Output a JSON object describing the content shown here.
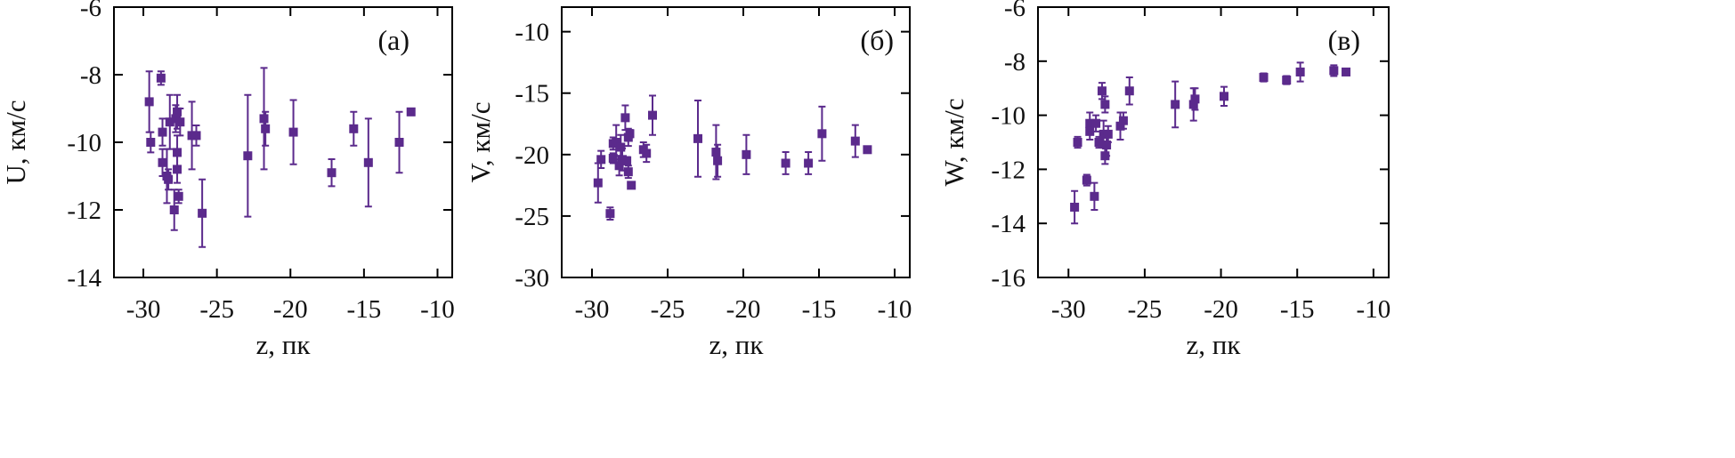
{
  "chart_data": [
    {
      "type": "scatter",
      "panel_label": "(а)",
      "xlabel": "z, пк",
      "ylabel": "U, км/с",
      "xlim": [
        -32,
        -9
      ],
      "ylim": [
        -14,
        -6
      ],
      "xticks": [
        -30,
        -25,
        -20,
        -15,
        -10
      ],
      "yticks": [
        -14,
        -12,
        -10,
        -8,
        -6
      ],
      "xtick_labels": [
        "-30",
        "-25",
        "-20",
        "-15",
        "-10"
      ],
      "ytick_labels": [
        "-14",
        "-12",
        "-10",
        "-8",
        "-6"
      ],
      "color": "#5b2a8c",
      "points": [
        {
          "x": -29.6,
          "y": -8.8,
          "err": 0.9
        },
        {
          "x": -29.5,
          "y": -10.0,
          "err": 0.3
        },
        {
          "x": -28.8,
          "y": -8.1,
          "err": 0.2
        },
        {
          "x": -28.7,
          "y": -9.7,
          "err": 0.4
        },
        {
          "x": -28.7,
          "y": -10.6,
          "err": 0.4
        },
        {
          "x": -28.4,
          "y": -11.0,
          "err": 0.8
        },
        {
          "x": -28.3,
          "y": -11.1,
          "err": 0.3
        },
        {
          "x": -28.2,
          "y": -9.4,
          "err": 0.8
        },
        {
          "x": -27.9,
          "y": -12.0,
          "err": 0.6
        },
        {
          "x": -27.8,
          "y": -9.3,
          "err": 0.4
        },
        {
          "x": -27.7,
          "y": -9.1,
          "err": 0.5
        },
        {
          "x": -27.7,
          "y": -10.3,
          "err": 0.5
        },
        {
          "x": -27.7,
          "y": -10.8,
          "err": 0.4
        },
        {
          "x": -27.6,
          "y": -11.6,
          "err": 0.2
        },
        {
          "x": -27.5,
          "y": -9.4,
          "err": 0.4
        },
        {
          "x": -26.7,
          "y": -9.8,
          "err": 1.0
        },
        {
          "x": -26.4,
          "y": -9.8,
          "err": 0.3
        },
        {
          "x": -26.0,
          "y": -12.1,
          "err": 1.0
        },
        {
          "x": -22.9,
          "y": -10.4,
          "err": 1.8
        },
        {
          "x": -21.8,
          "y": -9.3,
          "err": 1.5
        },
        {
          "x": -21.7,
          "y": -9.6,
          "err": 0.5
        },
        {
          "x": -19.8,
          "y": -9.7,
          "err": 0.95
        },
        {
          "x": -17.2,
          "y": -10.9,
          "err": 0.4
        },
        {
          "x": -15.7,
          "y": -9.6,
          "err": 0.5
        },
        {
          "x": -14.7,
          "y": -10.6,
          "err": 1.3
        },
        {
          "x": -12.6,
          "y": -10.0,
          "err": 0.9
        },
        {
          "x": -11.8,
          "y": -9.1,
          "err": 0.1
        }
      ]
    },
    {
      "type": "scatter",
      "panel_label": "(б)",
      "xlabel": "z, пк",
      "ylabel": "V, км/с",
      "xlim": [
        -32,
        -9
      ],
      "ylim": [
        -30,
        -8
      ],
      "xticks": [
        -30,
        -25,
        -20,
        -15,
        -10
      ],
      "yticks": [
        -30,
        -25,
        -20,
        -15,
        -10
      ],
      "xtick_labels": [
        "-30",
        "-25",
        "-20",
        "-15",
        "-10"
      ],
      "ytick_labels": [
        "-30",
        "-25",
        "-20",
        "-15",
        "-10"
      ],
      "color": "#5b2a8c",
      "points": [
        {
          "x": -29.6,
          "y": -22.3,
          "err": 1.6
        },
        {
          "x": -29.4,
          "y": -20.4,
          "err": 0.7
        },
        {
          "x": -28.8,
          "y": -24.8,
          "err": 0.5
        },
        {
          "x": -28.6,
          "y": -20.3,
          "err": 0.4
        },
        {
          "x": -28.6,
          "y": -19.1,
          "err": 0.5
        },
        {
          "x": -28.4,
          "y": -19.0,
          "err": 1.4
        },
        {
          "x": -28.2,
          "y": -20.9,
          "err": 0.8
        },
        {
          "x": -28.1,
          "y": -19.4,
          "err": 1.0
        },
        {
          "x": -28.0,
          "y": -20.4,
          "err": 0.9
        },
        {
          "x": -27.8,
          "y": -17.0,
          "err": 1.0
        },
        {
          "x": -27.7,
          "y": -20.5,
          "err": 0.3
        },
        {
          "x": -27.6,
          "y": -21.4,
          "err": 0.5
        },
        {
          "x": -27.6,
          "y": -18.6,
          "err": 0.7
        },
        {
          "x": -27.5,
          "y": -18.3,
          "err": 0.3
        },
        {
          "x": -27.4,
          "y": -22.5,
          "err": 0.2
        },
        {
          "x": -26.6,
          "y": -19.6,
          "err": 0.6
        },
        {
          "x": -26.4,
          "y": -19.9,
          "err": 0.7
        },
        {
          "x": -26.0,
          "y": -16.8,
          "err": 1.6
        },
        {
          "x": -23.0,
          "y": -18.7,
          "err": 3.1
        },
        {
          "x": -21.8,
          "y": -19.8,
          "err": 2.2
        },
        {
          "x": -21.7,
          "y": -20.5,
          "err": 1.3
        },
        {
          "x": -19.8,
          "y": -20.0,
          "err": 1.6
        },
        {
          "x": -17.2,
          "y": -20.7,
          "err": 0.9
        },
        {
          "x": -15.7,
          "y": -20.7,
          "err": 0.9
        },
        {
          "x": -14.8,
          "y": -18.3,
          "err": 2.2
        },
        {
          "x": -12.6,
          "y": -18.9,
          "err": 1.3
        },
        {
          "x": -11.8,
          "y": -19.6,
          "err": 0.1
        }
      ]
    },
    {
      "type": "scatter",
      "panel_label": "(в)",
      "xlabel": "z, пк",
      "ylabel": "W, км/с",
      "xlim": [
        -32,
        -9
      ],
      "ylim": [
        -16,
        -6
      ],
      "xticks": [
        -30,
        -25,
        -20,
        -15,
        -10
      ],
      "yticks": [
        -16,
        -14,
        -12,
        -10,
        -8,
        -6
      ],
      "xtick_labels": [
        "-30",
        "-25",
        "-20",
        "-15",
        "-10"
      ],
      "ytick_labels": [
        "-16",
        "-14",
        "-12",
        "-10",
        "-8",
        "-6"
      ],
      "color": "#5b2a8c",
      "points": [
        {
          "x": -29.6,
          "y": -13.4,
          "err": 0.6
        },
        {
          "x": -29.4,
          "y": -11.0,
          "err": 0.2
        },
        {
          "x": -28.8,
          "y": -12.4,
          "err": 0.2
        },
        {
          "x": -28.6,
          "y": -10.3,
          "err": 0.4
        },
        {
          "x": -28.6,
          "y": -10.6,
          "err": 0.3
        },
        {
          "x": -28.3,
          "y": -13.0,
          "err": 0.5
        },
        {
          "x": -28.2,
          "y": -10.3,
          "err": 0.3
        },
        {
          "x": -28.0,
          "y": -11.0,
          "err": 0.2
        },
        {
          "x": -27.8,
          "y": -9.1,
          "err": 0.3
        },
        {
          "x": -27.7,
          "y": -10.7,
          "err": 0.5
        },
        {
          "x": -27.6,
          "y": -9.6,
          "err": 0.3
        },
        {
          "x": -27.6,
          "y": -11.5,
          "err": 0.3
        },
        {
          "x": -27.5,
          "y": -11.1,
          "err": 0.4
        },
        {
          "x": -27.4,
          "y": -10.7,
          "err": 0.3
        },
        {
          "x": -26.6,
          "y": -10.4,
          "err": 0.5
        },
        {
          "x": -26.4,
          "y": -10.2,
          "err": 0.3
        },
        {
          "x": -26.0,
          "y": -9.1,
          "err": 0.5
        },
        {
          "x": -23.0,
          "y": -9.6,
          "err": 0.85
        },
        {
          "x": -21.8,
          "y": -9.6,
          "err": 0.6
        },
        {
          "x": -21.7,
          "y": -9.4,
          "err": 0.4
        },
        {
          "x": -19.8,
          "y": -9.3,
          "err": 0.35
        },
        {
          "x": -17.2,
          "y": -8.6,
          "err": 0.15
        },
        {
          "x": -15.7,
          "y": -8.7,
          "err": 0.15
        },
        {
          "x": -14.8,
          "y": -8.4,
          "err": 0.35
        },
        {
          "x": -12.6,
          "y": -8.35,
          "err": 0.2
        },
        {
          "x": -11.8,
          "y": -8.4,
          "err": 0.05
        }
      ]
    }
  ]
}
